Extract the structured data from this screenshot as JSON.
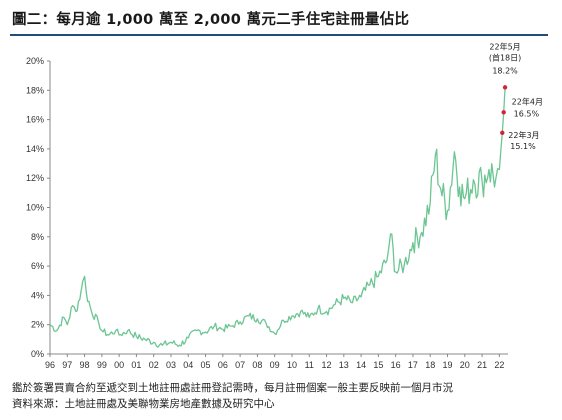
{
  "title": "圖二：每月逾 1,000 萬至 2,000 萬元二手住宅註冊量佔比",
  "footnotes": [
    "鑑於簽署買賣合約至遞交到土地註冊處註冊登記需時，每月註冊個案一般主要反映前一個月市況",
    "資料來源：土地註冊處及美聯物業房地產數據及研究中心"
  ],
  "chart_data": {
    "type": "line",
    "title": "",
    "xlabel": "",
    "ylabel": "",
    "ylim": [
      0,
      20
    ],
    "y_ticks": [
      "0%",
      "2%",
      "4%",
      "6%",
      "8%",
      "10%",
      "12%",
      "14%",
      "16%",
      "18%",
      "20%"
    ],
    "x_ticks": [
      "96",
      "97",
      "98",
      "99",
      "00",
      "01",
      "02",
      "03",
      "04",
      "05",
      "06",
      "07",
      "08",
      "09",
      "10",
      "11",
      "12",
      "13",
      "14",
      "15",
      "16",
      "17",
      "18",
      "19",
      "20",
      "21",
      "22"
    ],
    "grid": false,
    "line_color": "#6cc592",
    "marker_color": "#d6213a",
    "series": [
      {
        "values": [
          [
            1996.0,
            2.0
          ],
          [
            1996.4,
            1.6
          ],
          [
            1996.8,
            2.5
          ],
          [
            1997.0,
            2.0
          ],
          [
            1997.3,
            3.3
          ],
          [
            1997.5,
            2.9
          ],
          [
            1997.8,
            4.3
          ],
          [
            1998.0,
            5.3
          ],
          [
            1998.1,
            4.2
          ],
          [
            1998.4,
            2.9
          ],
          [
            1998.8,
            2.2
          ],
          [
            1999.0,
            1.6
          ],
          [
            1999.4,
            1.3
          ],
          [
            1999.8,
            1.6
          ],
          [
            2000.0,
            1.3
          ],
          [
            2000.5,
            1.6
          ],
          [
            2001.0,
            1.2
          ],
          [
            2001.5,
            1.0
          ],
          [
            2002.0,
            0.8
          ],
          [
            2002.5,
            0.6
          ],
          [
            2003.0,
            0.8
          ],
          [
            2003.5,
            0.6
          ],
          [
            2004.0,
            1.1
          ],
          [
            2004.5,
            1.6
          ],
          [
            2005.0,
            1.5
          ],
          [
            2005.5,
            1.9
          ],
          [
            2006.0,
            1.7
          ],
          [
            2006.5,
            1.9
          ],
          [
            2007.0,
            2.2
          ],
          [
            2007.5,
            2.6
          ],
          [
            2008.0,
            2.4
          ],
          [
            2008.5,
            2.1
          ],
          [
            2009.0,
            1.4
          ],
          [
            2009.5,
            2.3
          ],
          [
            2010.0,
            2.6
          ],
          [
            2010.5,
            2.9
          ],
          [
            2011.0,
            2.5
          ],
          [
            2011.5,
            3.1
          ],
          [
            2012.0,
            2.9
          ],
          [
            2012.5,
            3.4
          ],
          [
            2013.0,
            3.8
          ],
          [
            2013.5,
            3.5
          ],
          [
            2014.0,
            3.9
          ],
          [
            2014.5,
            4.7
          ],
          [
            2015.0,
            5.3
          ],
          [
            2015.5,
            6.4
          ],
          [
            2015.7,
            8.2
          ],
          [
            2016.0,
            5.6
          ],
          [
            2016.5,
            6.1
          ],
          [
            2017.0,
            7.6
          ],
          [
            2017.5,
            8.3
          ],
          [
            2018.0,
            10.3
          ],
          [
            2018.3,
            13.6
          ],
          [
            2018.6,
            11.3
          ],
          [
            2019.0,
            9.8
          ],
          [
            2019.4,
            13.8
          ],
          [
            2019.7,
            11.4
          ],
          [
            2020.0,
            10.6
          ],
          [
            2020.5,
            11.9
          ],
          [
            2021.0,
            11.8
          ],
          [
            2021.4,
            12.6
          ],
          [
            2021.8,
            12.0
          ],
          [
            2022.0,
            12.6
          ],
          [
            2022.17,
            15.1
          ],
          [
            2022.25,
            16.5
          ],
          [
            2022.33,
            18.2
          ]
        ]
      }
    ],
    "annotations": [
      {
        "label": "22年3月",
        "value": "15.1%",
        "x": 2022.17,
        "y": 15.1
      },
      {
        "label": "22年4月",
        "value": "16.5%",
        "x": 2022.25,
        "y": 16.5
      },
      {
        "label": "22年5月",
        "sublabel": "(首18日)",
        "value": "18.2%",
        "x": 2022.33,
        "y": 18.2
      }
    ]
  }
}
